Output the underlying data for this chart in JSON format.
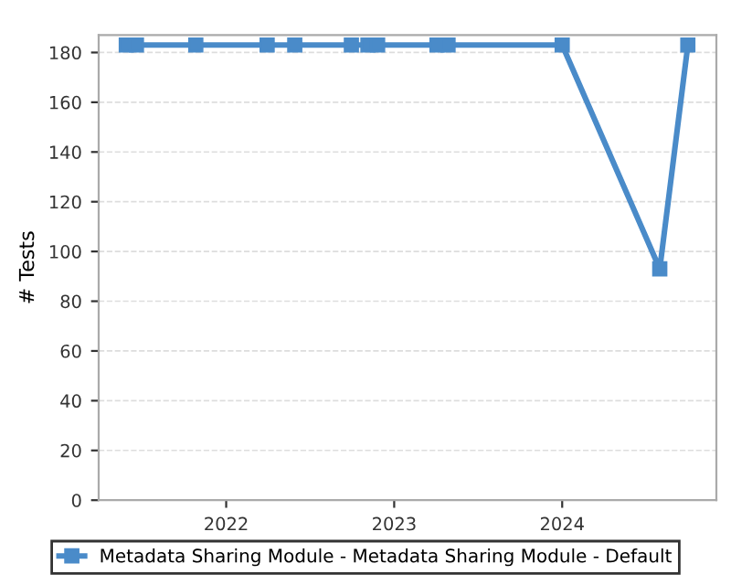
{
  "chart_data": {
    "type": "line",
    "ylabel": "# Tests",
    "x": [
      "2021-05-29",
      "2021-06-20",
      "2021-10-27",
      "2022-03-31",
      "2022-05-30",
      "2022-09-30",
      "2022-11-05",
      "2022-11-26",
      "2023-04-04",
      "2023-04-28",
      "2024-01-01",
      "2024-07-31",
      "2024-09-30"
    ],
    "series": [
      {
        "name": "Metadata Sharing Module - Metadata Sharing Module - Default",
        "color": "#4a8bc9",
        "values": [
          183,
          183,
          183,
          183,
          183,
          183,
          183,
          183,
          183,
          183,
          183,
          93,
          183
        ]
      }
    ],
    "xlim": [
      "2021-03-30",
      "2024-12-01"
    ],
    "xticks": [
      {
        "value": "2022-01-01",
        "label": "2022"
      },
      {
        "value": "2023-01-01",
        "label": "2023"
      },
      {
        "value": "2024-01-01",
        "label": "2024"
      }
    ],
    "ylim": [
      0,
      187
    ],
    "yticks": [
      0,
      20,
      40,
      60,
      80,
      100,
      120,
      140,
      160,
      180
    ],
    "grid": "y",
    "legend": "bottom",
    "marker": "square",
    "line_style": "solid"
  }
}
